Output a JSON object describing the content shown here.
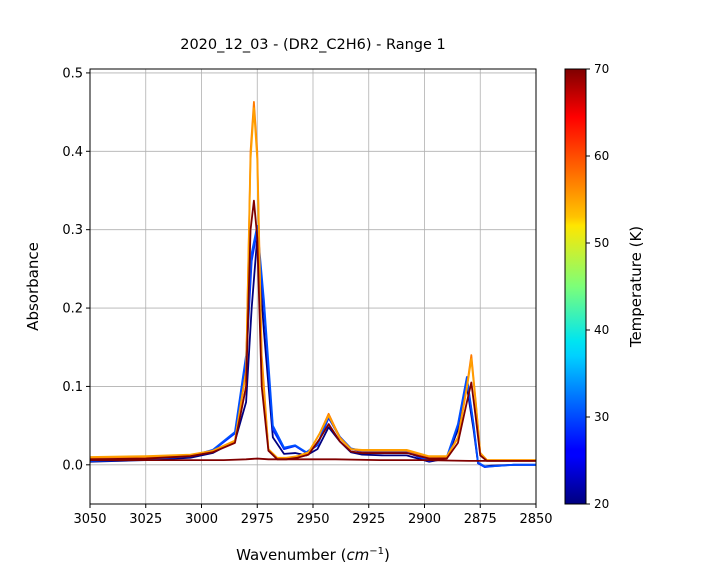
{
  "chart_data": {
    "type": "line",
    "title": "2020_12_03 - (DR2_C2H6) - Range 1",
    "xlabel_prefix": "Wavenumber (",
    "xlabel_math": "cm",
    "xlabel_sup": "−1",
    "xlabel_suffix": ")",
    "ylabel": "Absorbance",
    "xlim": [
      3050,
      2850
    ],
    "ylim": [
      -0.05,
      0.505
    ],
    "x_reversed": true,
    "grid": true,
    "xticks": [
      3050,
      3025,
      3000,
      2975,
      2950,
      2925,
      2900,
      2875,
      2850
    ],
    "yticks": [
      0.0,
      0.1,
      0.2,
      0.3,
      0.4,
      0.5
    ],
    "xtick_labels": [
      "3050",
      "3025",
      "3000",
      "2975",
      "2950",
      "2925",
      "2900",
      "2875",
      "2850"
    ],
    "ytick_labels": [
      "0.0",
      "0.1",
      "0.2",
      "0.3",
      "0.4",
      "0.5"
    ],
    "colorbar": {
      "label": "Temperature (K)",
      "range": [
        20,
        70
      ],
      "colormap": "jet",
      "ticks": [
        20,
        30,
        40,
        50,
        60,
        70
      ],
      "tick_labels": [
        "20",
        "30",
        "40",
        "50",
        "60",
        "70"
      ]
    },
    "series": [
      {
        "temperature": 20,
        "color": "#00007f",
        "x": [
          3050,
          3025,
          3005,
          2995,
          2985,
          2980,
          2977.5,
          2975,
          2972,
          2968,
          2963,
          2958,
          2953,
          2948,
          2943,
          2938,
          2933,
          2928,
          2918,
          2908,
          2898,
          2890,
          2885,
          2881,
          2878,
          2876,
          2873,
          2870,
          2860,
          2850
        ],
        "y": [
          0.004,
          0.006,
          0.009,
          0.015,
          0.03,
          0.08,
          0.2,
          0.29,
          0.17,
          0.035,
          0.014,
          0.015,
          0.012,
          0.02,
          0.048,
          0.03,
          0.016,
          0.013,
          0.012,
          0.012,
          0.004,
          0.008,
          0.045,
          0.1,
          0.045,
          0.002,
          -0.002,
          -0.001,
          0.0,
          0.0
        ]
      },
      {
        "temperature": 25,
        "color": "#0028ff",
        "x": [
          3050,
          3025,
          3005,
          2995,
          2985,
          2980,
          2977.5,
          2975,
          2972,
          2968,
          2963,
          2958,
          2953,
          2948,
          2943,
          2938,
          2933,
          2928,
          2918,
          2908,
          2898,
          2890,
          2885,
          2881,
          2878,
          2876,
          2873,
          2870,
          2860,
          2850
        ],
        "y": [
          0.005,
          0.007,
          0.011,
          0.018,
          0.04,
          0.13,
          0.26,
          0.3,
          0.2,
          0.045,
          0.02,
          0.024,
          0.015,
          0.025,
          0.06,
          0.035,
          0.02,
          0.017,
          0.016,
          0.016,
          0.005,
          0.009,
          0.05,
          0.11,
          0.05,
          0.002,
          -0.003,
          -0.002,
          0.0,
          0.0
        ]
      },
      {
        "temperature": 28,
        "color": "#0050ff",
        "x": [
          3050,
          3025,
          3005,
          2995,
          2985,
          2980,
          2977.5,
          2975,
          2972,
          2968,
          2963,
          2958,
          2953,
          2948,
          2943,
          2938,
          2933,
          2928,
          2918,
          2908,
          2898,
          2890,
          2885,
          2881,
          2878,
          2876,
          2873,
          2870,
          2860,
          2850
        ],
        "y": [
          0.005,
          0.007,
          0.011,
          0.019,
          0.042,
          0.14,
          0.27,
          0.305,
          0.21,
          0.05,
          0.022,
          0.025,
          0.016,
          0.026,
          0.062,
          0.036,
          0.021,
          0.018,
          0.017,
          0.017,
          0.006,
          0.01,
          0.052,
          0.112,
          0.052,
          0.003,
          -0.002,
          -0.002,
          0.0,
          0.0
        ]
      },
      {
        "temperature": 60,
        "color": "#ff7a00",
        "x": [
          3050,
          3025,
          3005,
          2995,
          2985,
          2980,
          2978,
          2976.5,
          2975,
          2973,
          2970,
          2966,
          2962,
          2957,
          2952,
          2947,
          2943,
          2938,
          2933,
          2928,
          2918,
          2908,
          2898,
          2890,
          2885,
          2881,
          2879,
          2877,
          2875,
          2872,
          2860,
          2850
        ],
        "y": [
          0.009,
          0.01,
          0.012,
          0.017,
          0.03,
          0.12,
          0.4,
          0.463,
          0.4,
          0.14,
          0.02,
          0.008,
          0.008,
          0.01,
          0.015,
          0.04,
          0.065,
          0.035,
          0.02,
          0.018,
          0.018,
          0.018,
          0.01,
          0.01,
          0.035,
          0.1,
          0.14,
          0.08,
          0.015,
          0.006,
          0.006,
          0.006
        ]
      },
      {
        "temperature": 62,
        "color": "#ff9f00",
        "x": [
          3050,
          3025,
          3005,
          2995,
          2985,
          2980,
          2978,
          2976.5,
          2975,
          2973,
          2970,
          2966,
          2962,
          2957,
          2952,
          2947,
          2943,
          2938,
          2933,
          2928,
          2918,
          2908,
          2898,
          2890,
          2885,
          2881,
          2879,
          2877,
          2875,
          2872,
          2860,
          2850
        ],
        "y": [
          0.01,
          0.011,
          0.013,
          0.018,
          0.031,
          0.12,
          0.39,
          0.455,
          0.39,
          0.13,
          0.02,
          0.009,
          0.009,
          0.011,
          0.016,
          0.04,
          0.063,
          0.034,
          0.02,
          0.019,
          0.019,
          0.019,
          0.011,
          0.011,
          0.034,
          0.098,
          0.135,
          0.078,
          0.015,
          0.006,
          0.006,
          0.006
        ]
      },
      {
        "temperature": 70,
        "color": "#7f0000",
        "x": [
          3050,
          3025,
          3005,
          2995,
          2985,
          2980,
          2978,
          2976.5,
          2975,
          2973,
          2970,
          2966,
          2962,
          2957,
          2952,
          2947,
          2943,
          2938,
          2933,
          2928,
          2918,
          2908,
          2898,
          2890,
          2885,
          2881,
          2879,
          2877,
          2875,
          2872,
          2860,
          2850
        ],
        "y": [
          0.007,
          0.008,
          0.011,
          0.016,
          0.028,
          0.1,
          0.3,
          0.337,
          0.29,
          0.1,
          0.018,
          0.007,
          0.007,
          0.009,
          0.013,
          0.033,
          0.052,
          0.03,
          0.017,
          0.015,
          0.015,
          0.015,
          0.008,
          0.008,
          0.028,
          0.08,
          0.105,
          0.06,
          0.012,
          0.005,
          0.005,
          0.005
        ]
      },
      {
        "temperature": 72,
        "color": "#800000",
        "x": [
          3050,
          3000,
          2990,
          2980,
          2975,
          2970,
          2960,
          2940,
          2920,
          2900,
          2880,
          2870,
          2850
        ],
        "y": [
          0.006,
          0.006,
          0.006,
          0.007,
          0.008,
          0.007,
          0.007,
          0.007,
          0.006,
          0.006,
          0.005,
          0.005,
          0.005
        ]
      }
    ]
  }
}
